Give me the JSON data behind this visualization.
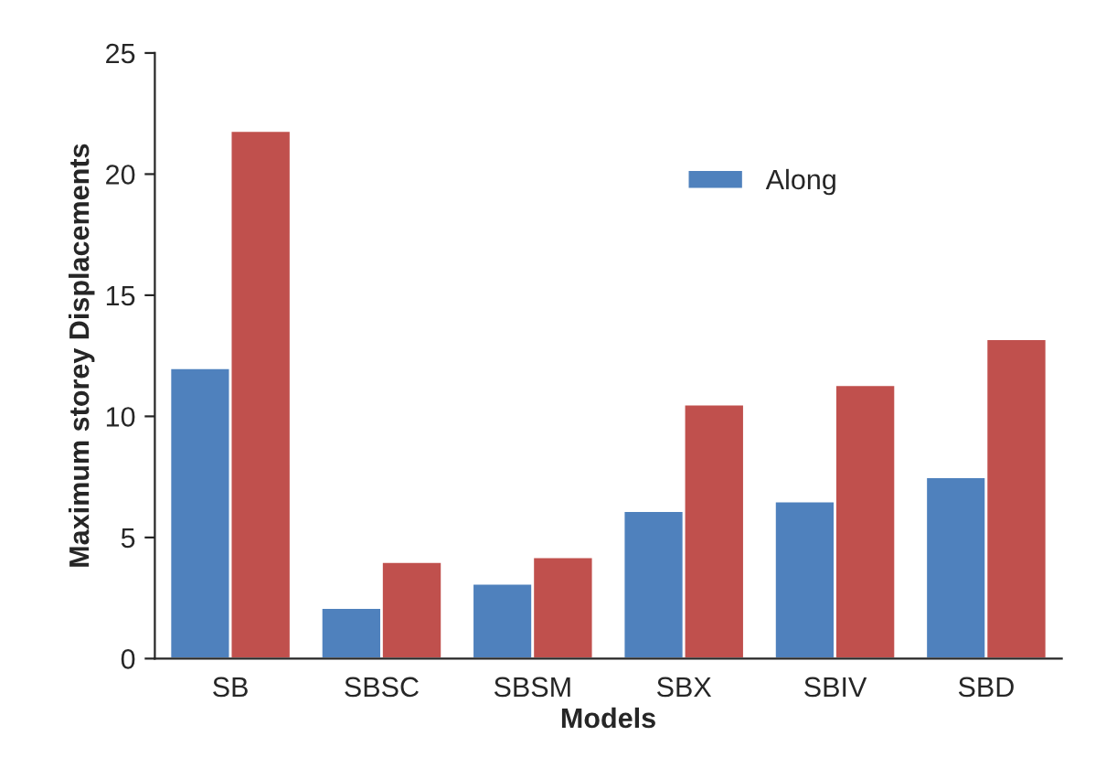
{
  "chart_data": {
    "type": "bar",
    "xlabel": "Models",
    "ylabel": "Maximum storey Displacements",
    "categories": [
      "SB",
      "SBSC",
      "SBSM",
      "SBX",
      "SBIV",
      "SBD"
    ],
    "series": [
      {
        "name": "Along",
        "color": "#4f81bd",
        "values": [
          12.0,
          2.1,
          3.1,
          6.1,
          6.5,
          7.5
        ]
      },
      {
        "color": "#c0504d",
        "values": [
          21.8,
          4.0,
          4.2,
          10.5,
          11.3,
          13.2
        ]
      }
    ],
    "ylim": [
      0,
      25
    ],
    "yticks": [
      0,
      5,
      10,
      15,
      20,
      25
    ],
    "legend": "top right",
    "grid": false
  }
}
